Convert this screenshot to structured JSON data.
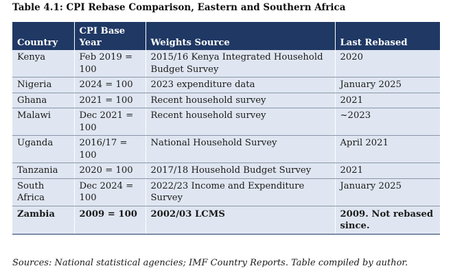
{
  "caption": "Table 4.1: CPI Rebase Comparison, Eastern and Southern Africa",
  "table": {
    "headers": [
      "Country",
      "CPI Base Year",
      "Weights Source",
      "Last Rebased"
    ],
    "rows": [
      [
        "Kenya",
        "Feb 2019 = 100",
        "2015/16 Kenya Integrated Household Budget Survey",
        "2020"
      ],
      [
        "Nigeria",
        "2024 = 100",
        "2023 expenditure data",
        "January 2025"
      ],
      [
        "Ghana",
        "2021 = 100",
        "Recent household survey",
        "2021"
      ],
      [
        "Malawi",
        "Dec 2021 = 100",
        "Recent household survey",
        "~2023"
      ],
      [
        "Uganda",
        "2016/17 = 100",
        "National Household Survey",
        "April 2021"
      ],
      [
        "Tanzania",
        "2020 = 100",
        "2017/18 Household Budget Survey",
        "2021"
      ],
      [
        "South Africa",
        "Dec 2024 = 100",
        "2022/23 Income and Expenditure Survey",
        "January 2025"
      ],
      [
        "Zambia",
        "2009 = 100",
        "2002/03 LCMS",
        "2009. Not rebased since."
      ]
    ]
  },
  "footnote": "Sources: National statistical agencies; IMF Country Reports. Table compiled by author."
}
